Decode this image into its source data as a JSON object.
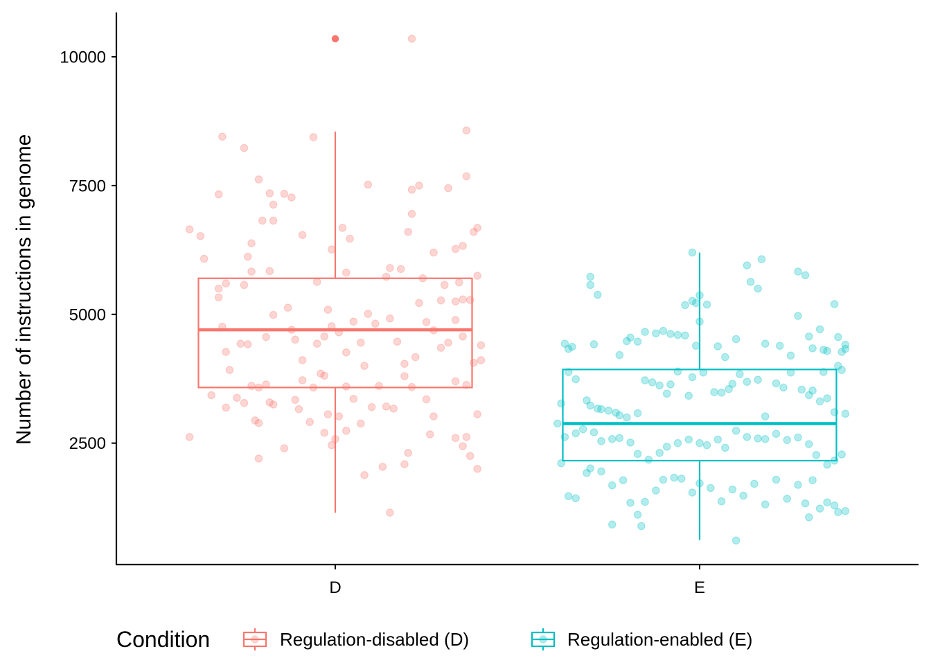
{
  "chart_data": {
    "type": "boxplot",
    "ylabel": "Number of instructions in genome",
    "xlabel": "",
    "categories": [
      "D",
      "E"
    ],
    "ylim": [
      0,
      10850
    ],
    "yticks": [
      2500,
      5000,
      7500,
      10000
    ],
    "legend": {
      "title": "Condition",
      "placement": "bottom",
      "entries": [
        {
          "key": "D",
          "label": "Regulation-disabled (D)"
        },
        {
          "key": "E",
          "label": "Regulation-enabled (E)"
        }
      ]
    },
    "colors": {
      "D": "#F8766D",
      "E": "#00BFC4",
      "axis": "#000000"
    },
    "boxes": [
      {
        "category": "D",
        "name": "Regulation-disabled (D)",
        "min": 1150,
        "q1": 3580,
        "median": 4700,
        "q3": 5700,
        "max": 8550,
        "outliers": [
          10350
        ]
      },
      {
        "category": "E",
        "name": "Regulation-enabled (E)",
        "min": 620,
        "q1": 2160,
        "median": 2880,
        "q3": 3930,
        "max": 6200,
        "outliers": []
      }
    ],
    "points": {
      "D": [
        [
          -0.4,
          6650
        ],
        [
          -0.37,
          6520
        ],
        [
          -0.36,
          6080
        ],
        [
          -0.31,
          8450
        ],
        [
          -0.25,
          8230
        ],
        [
          -0.21,
          7620
        ],
        [
          -0.18,
          7350
        ],
        [
          -0.17,
          7130
        ],
        [
          -0.14,
          7340
        ],
        [
          -0.12,
          7270
        ],
        [
          -0.06,
          8440
        ],
        [
          -0.32,
          7330
        ],
        [
          -0.32,
          5500
        ],
        [
          -0.3,
          5600
        ],
        [
          -0.25,
          5570
        ],
        [
          -0.23,
          5830
        ],
        [
          -0.23,
          6380
        ],
        [
          -0.24,
          6120
        ],
        [
          -0.2,
          6820
        ],
        [
          -0.17,
          6820
        ],
        [
          -0.09,
          6540
        ],
        [
          -0.18,
          5840
        ],
        [
          -0.05,
          5630
        ],
        [
          -0.01,
          6260
        ],
        [
          0.02,
          6680
        ],
        [
          0.03,
          5810
        ],
        [
          0.04,
          6470
        ],
        [
          0.09,
          7520
        ],
        [
          0.14,
          5730
        ],
        [
          0.15,
          5900
        ],
        [
          0.2,
          6600
        ],
        [
          0.18,
          5880
        ],
        [
          0.21,
          6950
        ],
        [
          0.21,
          7420
        ],
        [
          0.23,
          7500
        ],
        [
          0.24,
          5700
        ],
        [
          0.27,
          6200
        ],
        [
          0.29,
          5270
        ],
        [
          0.3,
          5570
        ],
        [
          0.31,
          7450
        ],
        [
          0.33,
          5250
        ],
        [
          0.34,
          5620
        ],
        [
          0.35,
          6330
        ],
        [
          0.36,
          7680
        ],
        [
          0.33,
          6270
        ],
        [
          0.38,
          6600
        ],
        [
          0.39,
          6680
        ],
        [
          0.39,
          5750
        ],
        [
          0.35,
          5290
        ],
        [
          0.37,
          5280
        ],
        [
          0.4,
          4400
        ],
        [
          0.36,
          8570
        ],
        [
          -0.32,
          5330
        ],
        [
          -0.31,
          4760
        ],
        [
          -0.3,
          4270
        ],
        [
          -0.29,
          3920
        ],
        [
          -0.26,
          4430
        ],
        [
          -0.24,
          4420
        ],
        [
          -0.19,
          4560
        ],
        [
          -0.17,
          4990
        ],
        [
          -0.13,
          5130
        ],
        [
          -0.12,
          4700
        ],
        [
          -0.11,
          4510
        ],
        [
          -0.09,
          4110
        ],
        [
          -0.05,
          4430
        ],
        [
          -0.03,
          4570
        ],
        [
          -0.02,
          5090
        ],
        [
          -0.01,
          4770
        ],
        [
          0.01,
          4650
        ],
        [
          0.03,
          4260
        ],
        [
          0.05,
          4860
        ],
        [
          0.07,
          4450
        ],
        [
          0.09,
          5010
        ],
        [
          0.11,
          4820
        ],
        [
          0.15,
          4920
        ],
        [
          0.17,
          4470
        ],
        [
          0.19,
          4040
        ],
        [
          0.22,
          4170
        ],
        [
          0.23,
          5220
        ],
        [
          0.25,
          4850
        ],
        [
          0.27,
          4690
        ],
        [
          0.29,
          4350
        ],
        [
          0.31,
          4450
        ],
        [
          0.33,
          4890
        ],
        [
          0.35,
          4570
        ],
        [
          0.38,
          4060
        ],
        [
          -0.27,
          3380
        ],
        [
          -0.25,
          3280
        ],
        [
          -0.23,
          3610
        ],
        [
          -0.21,
          3580
        ],
        [
          -0.19,
          3640
        ],
        [
          -0.18,
          3290
        ],
        [
          -0.17,
          3250
        ],
        [
          -0.11,
          3340
        ],
        [
          -0.1,
          3160
        ],
        [
          -0.09,
          3720
        ],
        [
          -0.06,
          3580
        ],
        [
          -0.04,
          3850
        ],
        [
          -0.03,
          3810
        ],
        [
          -0.02,
          3060
        ],
        [
          0.01,
          3020
        ],
        [
          0.03,
          3600
        ],
        [
          0.05,
          3360
        ],
        [
          0.08,
          4000
        ],
        [
          0.12,
          3610
        ],
        [
          0.14,
          3210
        ],
        [
          0.16,
          3170
        ],
        [
          0.19,
          3800
        ],
        [
          0.21,
          3590
        ],
        [
          0.25,
          3350
        ],
        [
          0.27,
          3020
        ],
        [
          0.33,
          3700
        ],
        [
          0.36,
          3630
        ],
        [
          0.39,
          3060
        ],
        [
          0.4,
          4110
        ],
        [
          -0.4,
          2620
        ],
        [
          -0.3,
          3190
        ],
        [
          -0.22,
          2940
        ],
        [
          -0.21,
          2890
        ],
        [
          -0.14,
          2400
        ],
        [
          -0.07,
          2910
        ],
        [
          -0.03,
          2700
        ],
        [
          -0.01,
          2460
        ],
        [
          0.0,
          2580
        ],
        [
          0.03,
          2740
        ],
        [
          0.07,
          2880
        ],
        [
          0.08,
          1880
        ],
        [
          0.13,
          2040
        ],
        [
          0.19,
          2090
        ],
        [
          0.2,
          2310
        ],
        [
          0.26,
          2670
        ],
        [
          0.33,
          2600
        ],
        [
          0.35,
          2440
        ],
        [
          0.36,
          2620
        ],
        [
          0.37,
          2250
        ],
        [
          0.39,
          2000
        ],
        [
          -0.21,
          2200
        ],
        [
          0.1,
          3200
        ],
        [
          -0.34,
          3430
        ],
        [
          0.15,
          1150
        ],
        [
          0.21,
          10350
        ]
      ],
      "E": [
        [
          -0.37,
          4430
        ],
        [
          -0.36,
          4330
        ],
        [
          -0.35,
          4370
        ],
        [
          -0.29,
          4420
        ],
        [
          -0.28,
          5380
        ],
        [
          -0.3,
          5730
        ],
        [
          -0.3,
          5570
        ],
        [
          -0.22,
          4210
        ],
        [
          -0.2,
          4480
        ],
        [
          -0.19,
          4550
        ],
        [
          -0.17,
          4470
        ],
        [
          -0.15,
          4660
        ],
        [
          -0.12,
          4630
        ],
        [
          -0.1,
          4680
        ],
        [
          -0.08,
          4620
        ],
        [
          -0.06,
          4600
        ],
        [
          -0.04,
          4590
        ],
        [
          -0.04,
          5180
        ],
        [
          -0.02,
          5260
        ],
        [
          -0.01,
          5220
        ],
        [
          -0.01,
          4390
        ],
        [
          0.0,
          4860
        ],
        [
          0.0,
          5370
        ],
        [
          0.02,
          5190
        ],
        [
          0.05,
          4380
        ],
        [
          0.07,
          4170
        ],
        [
          0.1,
          4520
        ],
        [
          0.13,
          5950
        ],
        [
          0.14,
          5630
        ],
        [
          0.16,
          5500
        ],
        [
          0.17,
          6070
        ],
        [
          0.18,
          4430
        ],
        [
          0.22,
          4390
        ],
        [
          0.25,
          4200
        ],
        [
          0.27,
          5830
        ],
        [
          0.29,
          5760
        ],
        [
          0.27,
          4970
        ],
        [
          0.3,
          4570
        ],
        [
          0.31,
          4340
        ],
        [
          0.33,
          4710
        ],
        [
          0.34,
          4310
        ],
        [
          0.35,
          4290
        ],
        [
          0.37,
          5200
        ],
        [
          0.38,
          4560
        ],
        [
          0.39,
          4270
        ],
        [
          0.4,
          4410
        ],
        [
          0.4,
          4330
        ],
        [
          0.38,
          4000
        ],
        [
          0.39,
          3920
        ],
        [
          0.34,
          3880
        ],
        [
          -0.02,
          6200
        ],
        [
          -0.38,
          3270
        ],
        [
          -0.36,
          3880
        ],
        [
          -0.34,
          3740
        ],
        [
          -0.31,
          3330
        ],
        [
          -0.3,
          3230
        ],
        [
          -0.28,
          3170
        ],
        [
          -0.27,
          3160
        ],
        [
          -0.25,
          3130
        ],
        [
          -0.23,
          3090
        ],
        [
          -0.22,
          3040
        ],
        [
          -0.2,
          3000
        ],
        [
          -0.17,
          3080
        ],
        [
          -0.15,
          3720
        ],
        [
          -0.13,
          3680
        ],
        [
          -0.11,
          3620
        ],
        [
          -0.09,
          3460
        ],
        [
          -0.08,
          3640
        ],
        [
          -0.06,
          3890
        ],
        [
          -0.03,
          3420
        ],
        [
          -0.02,
          3780
        ],
        [
          0.01,
          3870
        ],
        [
          0.04,
          3490
        ],
        [
          0.06,
          3480
        ],
        [
          0.08,
          3550
        ],
        [
          0.09,
          3650
        ],
        [
          0.11,
          3840
        ],
        [
          0.13,
          3690
        ],
        [
          0.16,
          3730
        ],
        [
          0.18,
          3020
        ],
        [
          0.21,
          3660
        ],
        [
          0.23,
          3580
        ],
        [
          0.25,
          3870
        ],
        [
          0.28,
          3540
        ],
        [
          0.3,
          3430
        ],
        [
          0.31,
          3520
        ],
        [
          0.33,
          3310
        ],
        [
          0.35,
          3370
        ],
        [
          0.37,
          3100
        ],
        [
          0.4,
          3070
        ],
        [
          -0.39,
          2880
        ],
        [
          -0.37,
          2620
        ],
        [
          -0.34,
          2690
        ],
        [
          -0.32,
          2770
        ],
        [
          -0.29,
          2710
        ],
        [
          -0.27,
          2540
        ],
        [
          -0.24,
          2580
        ],
        [
          -0.22,
          2600
        ],
        [
          -0.19,
          2510
        ],
        [
          -0.17,
          2290
        ],
        [
          -0.14,
          2180
        ],
        [
          -0.11,
          2310
        ],
        [
          -0.09,
          2430
        ],
        [
          -0.06,
          2500
        ],
        [
          -0.03,
          2570
        ],
        [
          0.0,
          2500
        ],
        [
          0.02,
          2460
        ],
        [
          0.05,
          2570
        ],
        [
          0.07,
          2410
        ],
        [
          0.1,
          2740
        ],
        [
          0.13,
          2620
        ],
        [
          0.16,
          2590
        ],
        [
          0.18,
          2580
        ],
        [
          0.21,
          2680
        ],
        [
          0.24,
          2560
        ],
        [
          0.27,
          2610
        ],
        [
          0.3,
          2480
        ],
        [
          0.32,
          2270
        ],
        [
          0.35,
          2080
        ],
        [
          0.37,
          2160
        ],
        [
          0.39,
          2280
        ],
        [
          -0.38,
          2110
        ],
        [
          -0.36,
          1470
        ],
        [
          -0.34,
          1430
        ],
        [
          -0.31,
          1920
        ],
        [
          -0.3,
          2010
        ],
        [
          -0.27,
          1950
        ],
        [
          -0.24,
          1680
        ],
        [
          -0.21,
          1780
        ],
        [
          -0.19,
          1340
        ],
        [
          -0.17,
          1110
        ],
        [
          -0.15,
          1360
        ],
        [
          -0.12,
          1580
        ],
        [
          -0.1,
          1790
        ],
        [
          -0.07,
          1830
        ],
        [
          -0.05,
          1810
        ],
        [
          -0.02,
          1540
        ],
        [
          0.0,
          1720
        ],
        [
          0.03,
          1630
        ],
        [
          0.06,
          1370
        ],
        [
          0.09,
          1600
        ],
        [
          0.12,
          1480
        ],
        [
          0.15,
          1710
        ],
        [
          0.18,
          1310
        ],
        [
          0.21,
          1790
        ],
        [
          0.24,
          1420
        ],
        [
          0.27,
          1690
        ],
        [
          0.29,
          1330
        ],
        [
          0.31,
          1780
        ],
        [
          0.33,
          1230
        ],
        [
          0.35,
          1350
        ],
        [
          0.37,
          1290
        ],
        [
          0.38,
          1160
        ],
        [
          0.4,
          1180
        ],
        [
          -0.24,
          920
        ],
        [
          -0.16,
          890
        ],
        [
          0.1,
          610
        ],
        [
          0.3,
          1060
        ]
      ]
    }
  }
}
